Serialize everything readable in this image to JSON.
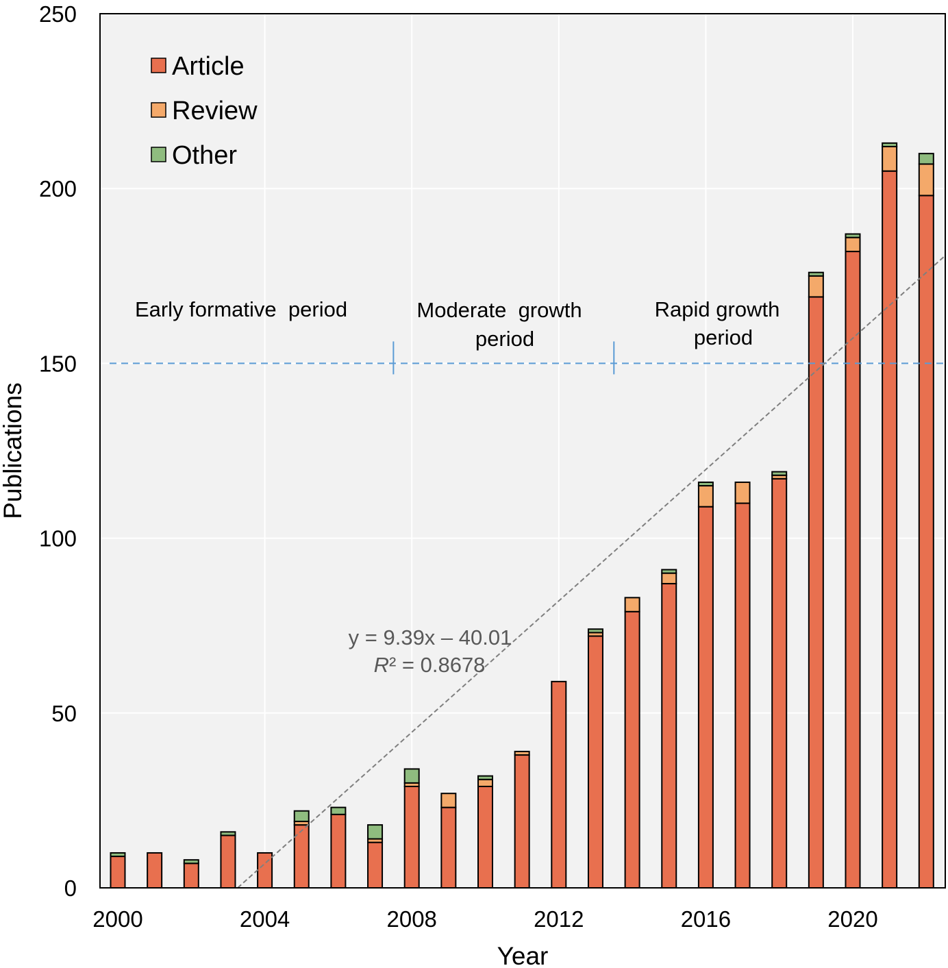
{
  "chart_data": {
    "type": "bar",
    "stacked": true,
    "xlabel": "Year",
    "ylabel": "Publications",
    "ylim": [
      0,
      250
    ],
    "yticks": [
      0,
      50,
      100,
      150,
      200,
      250
    ],
    "xticks": [
      2000,
      2004,
      2008,
      2012,
      2016,
      2020
    ],
    "grid": true,
    "legend_position": "top-left",
    "categories": [
      2000,
      2001,
      2002,
      2003,
      2004,
      2005,
      2006,
      2007,
      2008,
      2009,
      2010,
      2011,
      2012,
      2013,
      2014,
      2015,
      2016,
      2017,
      2018,
      2019,
      2020,
      2021,
      2022
    ],
    "series": [
      {
        "name": "Article",
        "color": "#e8704f",
        "values": [
          9,
          10,
          7,
          15,
          10,
          18,
          21,
          13,
          29,
          23,
          29,
          38,
          59,
          72,
          79,
          87,
          109,
          110,
          117,
          169,
          182,
          205,
          198
        ]
      },
      {
        "name": "Review",
        "color": "#f4a96a",
        "values": [
          0,
          0,
          0,
          0,
          0,
          1,
          0,
          1,
          1,
          4,
          2,
          1,
          0,
          1,
          4,
          3,
          6,
          6,
          1,
          6,
          4,
          7,
          9
        ]
      },
      {
        "name": "Other",
        "color": "#8fbc7f",
        "values": [
          1,
          0,
          1,
          1,
          0,
          3,
          2,
          4,
          4,
          0,
          1,
          0,
          0,
          1,
          0,
          1,
          1,
          0,
          1,
          1,
          1,
          1,
          3
        ]
      }
    ],
    "trendline": {
      "slope": 9.39,
      "intercept": -40.01,
      "color": "#7f7f7f",
      "equation": "y = 9.39x – 40.01",
      "r2_label": "R",
      "r2_rest": "² = 0.8678"
    },
    "periods": {
      "level": 150,
      "line_color": "#5b9bd5",
      "boundaries": [
        2007.5,
        2013.5
      ],
      "labels": [
        {
          "lines": [
            "Early formative  period"
          ]
        },
        {
          "lines": [
            "Moderate  growth",
            "period"
          ]
        },
        {
          "lines": [
            "Rapid growth",
            "period"
          ]
        }
      ]
    }
  }
}
